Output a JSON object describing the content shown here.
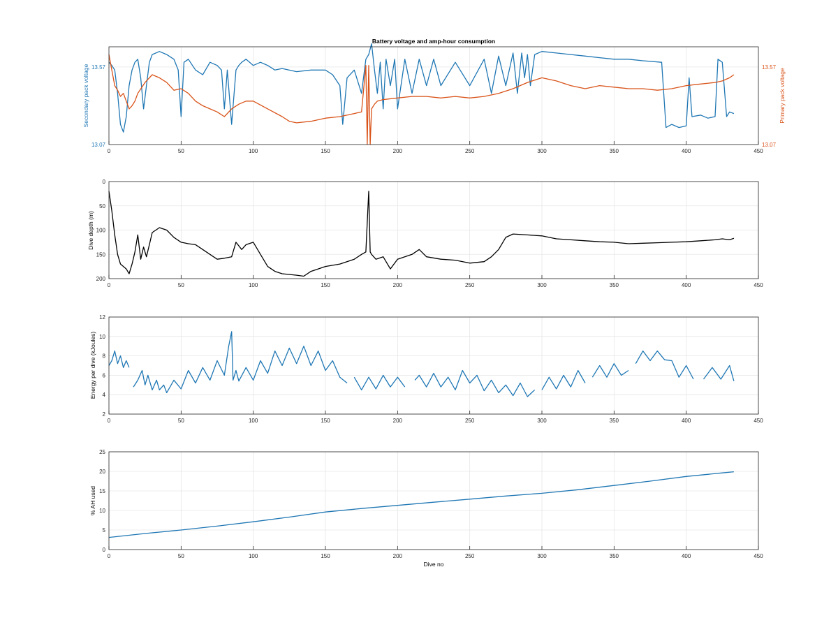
{
  "figure": {
    "title": "Battery voltage and amp-hour consumption",
    "colors": {
      "blue": "#1f77b4",
      "orange": "#d95319",
      "black": "#000000",
      "grid": "#e6e6e6",
      "axis": "#262626"
    }
  },
  "chart_data": [
    {
      "type": "line",
      "title": "Battery voltage and amp-hour consumption",
      "xlabel": "",
      "ylabel": "Secondary pack voltage",
      "ylabel_right": "Primary pack voltage",
      "xlim": [
        0,
        450
      ],
      "ylim": [
        13.07,
        13.7
      ],
      "ylim_right": [
        13.07,
        13.7
      ],
      "x_ticks": [
        "0",
        "50",
        "100",
        "150",
        "200",
        "250",
        "300",
        "350",
        "400",
        "450"
      ],
      "y_ticks": [
        "13.07",
        "13.57"
      ],
      "y_ticks_right": [
        "13.07",
        "13.57"
      ],
      "grid": true,
      "series": [
        {
          "axis": "left",
          "color": "#1f77b4",
          "x": [
            0,
            2,
            4,
            6,
            8,
            10,
            12,
            14,
            16,
            18,
            20,
            22,
            24,
            26,
            28,
            30,
            35,
            40,
            45,
            48,
            50,
            52,
            55,
            60,
            65,
            70,
            75,
            78,
            80,
            82,
            85,
            88,
            90,
            92,
            95,
            100,
            105,
            110,
            115,
            120,
            130,
            140,
            150,
            155,
            160,
            162,
            165,
            170,
            175,
            178,
            180,
            182,
            184,
            186,
            188,
            190,
            192,
            195,
            198,
            200,
            205,
            210,
            215,
            220,
            225,
            230,
            240,
            250,
            260,
            265,
            270,
            275,
            280,
            283,
            286,
            288,
            290,
            292,
            295,
            300,
            310,
            320,
            330,
            340,
            350,
            360,
            370,
            383,
            386,
            390,
            395,
            400,
            402,
            404,
            410,
            415,
            420,
            422,
            425,
            428,
            430,
            433
          ],
          "y": [
            13.6,
            13.58,
            13.55,
            13.4,
            13.2,
            13.15,
            13.25,
            13.45,
            13.55,
            13.6,
            13.62,
            13.5,
            13.3,
            13.45,
            13.6,
            13.65,
            13.67,
            13.65,
            13.62,
            13.55,
            13.25,
            13.6,
            13.62,
            13.55,
            13.52,
            13.6,
            13.58,
            13.55,
            13.3,
            13.55,
            13.2,
            13.55,
            13.58,
            13.6,
            13.62,
            13.58,
            13.6,
            13.58,
            13.55,
            13.56,
            13.54,
            13.55,
            13.55,
            13.52,
            13.45,
            13.2,
            13.5,
            13.55,
            13.4,
            13.62,
            13.65,
            13.72,
            13.55,
            13.4,
            13.6,
            13.3,
            13.62,
            13.45,
            13.62,
            13.3,
            13.62,
            13.4,
            13.62,
            13.45,
            13.62,
            13.45,
            13.6,
            13.45,
            13.62,
            13.4,
            13.64,
            13.45,
            13.66,
            13.4,
            13.66,
            13.5,
            13.65,
            13.45,
            13.65,
            13.67,
            13.66,
            13.65,
            13.64,
            13.63,
            13.62,
            13.62,
            13.61,
            13.6,
            13.18,
            13.2,
            13.18,
            13.19,
            13.5,
            13.25,
            13.26,
            13.24,
            13.25,
            13.62,
            13.6,
            13.25,
            13.28,
            13.27
          ]
        },
        {
          "axis": "right",
          "color": "#d95319",
          "x": [
            0,
            2,
            4,
            6,
            8,
            10,
            12,
            14,
            16,
            18,
            20,
            25,
            30,
            35,
            40,
            45,
            50,
            55,
            60,
            65,
            70,
            75,
            80,
            85,
            90,
            95,
            100,
            110,
            120,
            125,
            130,
            140,
            150,
            160,
            170,
            175,
            178,
            179,
            180,
            181,
            182,
            184,
            186,
            190,
            200,
            210,
            220,
            230,
            240,
            250,
            260,
            270,
            280,
            290,
            300,
            310,
            320,
            330,
            340,
            350,
            360,
            370,
            380,
            390,
            400,
            410,
            420,
            425,
            430,
            433
          ],
          "y": [
            13.65,
            13.55,
            13.45,
            13.42,
            13.38,
            13.4,
            13.35,
            13.3,
            13.32,
            13.35,
            13.4,
            13.47,
            13.52,
            13.5,
            13.47,
            13.42,
            13.43,
            13.4,
            13.35,
            13.32,
            13.3,
            13.28,
            13.25,
            13.3,
            13.33,
            13.35,
            13.35,
            13.3,
            13.25,
            13.22,
            13.21,
            13.22,
            13.24,
            13.25,
            13.27,
            13.28,
            13.58,
            13.07,
            13.58,
            13.07,
            13.3,
            13.33,
            13.35,
            13.36,
            13.37,
            13.38,
            13.38,
            13.37,
            13.38,
            13.37,
            13.38,
            13.4,
            13.43,
            13.47,
            13.5,
            13.48,
            13.45,
            13.43,
            13.45,
            13.44,
            13.43,
            13.43,
            13.42,
            13.43,
            13.45,
            13.46,
            13.47,
            13.48,
            13.5,
            13.52
          ]
        }
      ]
    },
    {
      "type": "line",
      "title": "",
      "xlabel": "",
      "ylabel": "Dive depth (m)",
      "xlim": [
        0,
        450
      ],
      "ylim": [
        0,
        200
      ],
      "y_reversed": true,
      "x_ticks": [
        "0",
        "50",
        "100",
        "150",
        "200",
        "250",
        "300",
        "350",
        "400",
        "450"
      ],
      "y_ticks": [
        "0",
        "50",
        "100",
        "150",
        "200"
      ],
      "grid": true,
      "series": [
        {
          "color": "#000000",
          "x": [
            0,
            2,
            4,
            6,
            8,
            10,
            12,
            14,
            16,
            18,
            20,
            22,
            24,
            26,
            28,
            30,
            35,
            40,
            45,
            50,
            55,
            60,
            65,
            70,
            75,
            80,
            85,
            88,
            92,
            95,
            100,
            105,
            110,
            115,
            120,
            130,
            135,
            140,
            145,
            150,
            160,
            170,
            175,
            178,
            180,
            181,
            182,
            185,
            190,
            195,
            200,
            210,
            215,
            220,
            230,
            240,
            250,
            260,
            265,
            270,
            275,
            280,
            290,
            300,
            310,
            320,
            330,
            340,
            350,
            360,
            370,
            380,
            390,
            400,
            410,
            420,
            425,
            430,
            433
          ],
          "y": [
            20,
            60,
            110,
            150,
            170,
            175,
            180,
            190,
            170,
            145,
            110,
            160,
            135,
            155,
            130,
            105,
            95,
            100,
            115,
            125,
            128,
            130,
            140,
            150,
            160,
            158,
            155,
            125,
            140,
            130,
            125,
            150,
            175,
            185,
            190,
            193,
            195,
            185,
            180,
            175,
            170,
            160,
            150,
            145,
            20,
            145,
            150,
            160,
            155,
            180,
            160,
            150,
            140,
            155,
            160,
            162,
            168,
            165,
            155,
            140,
            115,
            108,
            110,
            112,
            118,
            120,
            122,
            124,
            125,
            128,
            127,
            126,
            125,
            124,
            122,
            120,
            118,
            120,
            117
          ]
        }
      ]
    },
    {
      "type": "line",
      "title": "",
      "xlabel": "",
      "ylabel": "Energy per dive (kJoules)",
      "xlim": [
        0,
        450
      ],
      "ylim": [
        2,
        12
      ],
      "x_ticks": [
        "0",
        "50",
        "100",
        "150",
        "200",
        "250",
        "300",
        "350",
        "400",
        "450"
      ],
      "y_ticks": [
        "2",
        "4",
        "6",
        "8",
        "10",
        "12"
      ],
      "grid": true,
      "series": [
        {
          "color": "#1f77b4",
          "x": [
            0,
            2,
            4,
            6,
            8,
            10,
            12,
            14,
            null,
            17,
            20,
            23,
            25,
            27,
            30,
            33,
            35,
            38,
            40,
            45,
            50,
            55,
            60,
            65,
            70,
            75,
            80,
            83,
            85,
            86,
            88,
            90,
            95,
            100,
            105,
            110,
            115,
            120,
            125,
            130,
            135,
            140,
            145,
            150,
            155,
            160,
            165,
            null,
            170,
            175,
            180,
            185,
            190,
            195,
            200,
            205,
            null,
            212,
            215,
            220,
            225,
            230,
            235,
            240,
            245,
            250,
            255,
            260,
            265,
            270,
            275,
            280,
            285,
            290,
            295,
            null,
            300,
            305,
            310,
            315,
            320,
            325,
            330,
            null,
            335,
            340,
            345,
            350,
            355,
            360,
            null,
            365,
            370,
            375,
            380,
            385,
            390,
            395,
            400,
            405,
            null,
            412,
            418,
            424,
            430,
            433
          ],
          "y": [
            7,
            7.5,
            8.5,
            7.2,
            8,
            6.8,
            7.5,
            6.8,
            null,
            4.8,
            5.5,
            6.5,
            5,
            6,
            4.5,
            5.5,
            4.5,
            5,
            4.2,
            5.5,
            4.6,
            6.5,
            5.2,
            6.8,
            5.5,
            7.5,
            6,
            9,
            10.5,
            5.5,
            6.5,
            5.4,
            6.8,
            5.5,
            7.5,
            6.2,
            8.5,
            7,
            8.8,
            7.2,
            9,
            7,
            8.5,
            6.5,
            7.5,
            5.8,
            5.2,
            null,
            5.8,
            4.5,
            5.8,
            4.6,
            6,
            4.8,
            5.8,
            4.8,
            null,
            5.5,
            6,
            4.8,
            6.2,
            4.8,
            5.8,
            4.5,
            6.5,
            5.2,
            6,
            4.4,
            5.5,
            4.2,
            5,
            3.9,
            5.2,
            3.8,
            4.5,
            null,
            4.5,
            5.8,
            4.6,
            6,
            4.8,
            6.5,
            5.2,
            null,
            5.8,
            7,
            5.8,
            7.2,
            6,
            6.5,
            null,
            7.2,
            8.5,
            7.5,
            8.5,
            7.6,
            7.5,
            5.8,
            7,
            5.6,
            null,
            5.6,
            6.8,
            5.6,
            7,
            5.4
          ]
        }
      ]
    },
    {
      "type": "line",
      "title": "",
      "xlabel": "Dive no",
      "ylabel": "% AH used",
      "xlim": [
        0,
        450
      ],
      "ylim": [
        0,
        25
      ],
      "x_ticks": [
        "0",
        "50",
        "100",
        "150",
        "200",
        "250",
        "300",
        "350",
        "400",
        "450"
      ],
      "y_ticks": [
        "0",
        "5",
        "10",
        "15",
        "20",
        "25"
      ],
      "grid": true,
      "series": [
        {
          "color": "#1f77b4",
          "x": [
            0,
            25,
            50,
            75,
            100,
            125,
            150,
            175,
            200,
            225,
            250,
            275,
            300,
            325,
            350,
            375,
            400,
            425,
            433
          ],
          "y": [
            3.1,
            4.1,
            5,
            6,
            7.1,
            8.3,
            9.6,
            10.5,
            11.3,
            12.1,
            12.9,
            13.7,
            14.4,
            15.3,
            16.4,
            17.5,
            18.7,
            19.6,
            19.9
          ]
        }
      ]
    }
  ]
}
